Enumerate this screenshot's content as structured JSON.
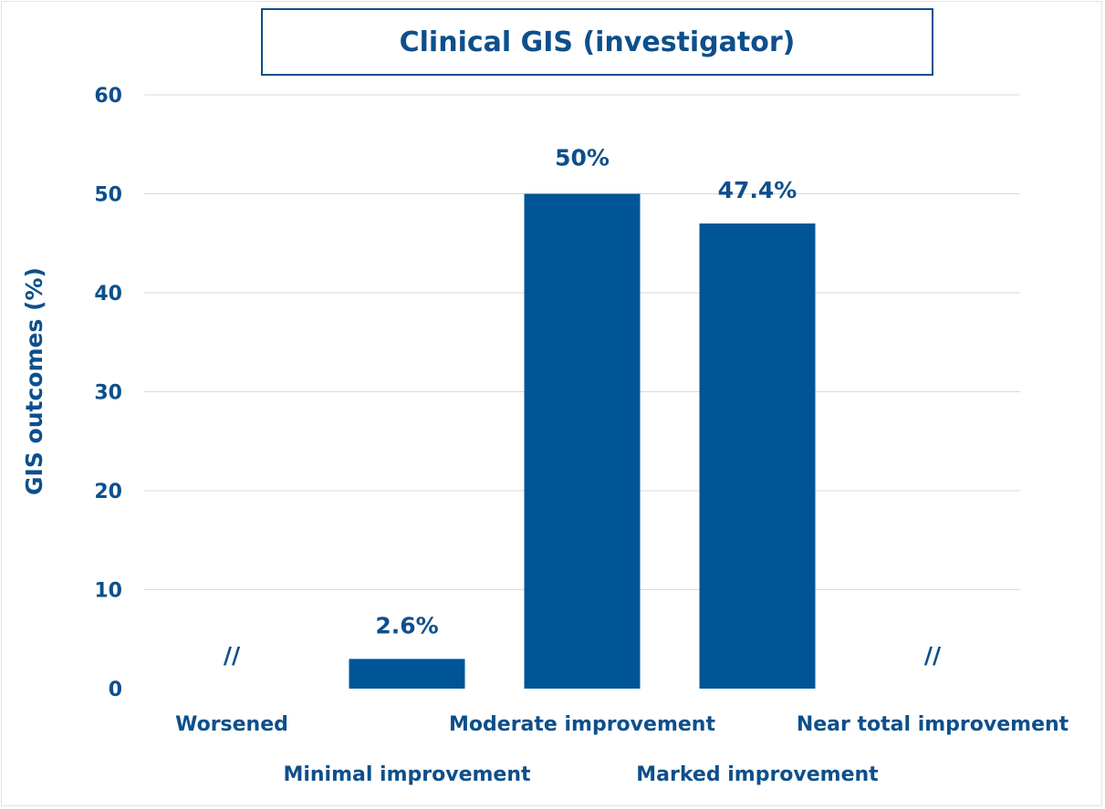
{
  "chart_data": {
    "type": "bar",
    "title": "Clinical GIS (investigator)",
    "ylabel": "GIS outcomes (%)",
    "xlabel": "",
    "categories": [
      "Worsened",
      "Minimal improvement",
      "Moderate improvement",
      "Marked improvement",
      "Near total improvement"
    ],
    "values": [
      0,
      3,
      50,
      47,
      0
    ],
    "data_labels": [
      "//",
      "2.6%",
      "50%",
      "47.4%",
      "//"
    ],
    "ylim": [
      0,
      60
    ],
    "yticks": [
      0,
      10,
      20,
      30,
      40,
      50,
      60
    ],
    "grid": true,
    "legend": "none",
    "colors": {
      "bar": "#005596",
      "text": "#0d4f8b",
      "grid": "#d9d9d9"
    }
  }
}
